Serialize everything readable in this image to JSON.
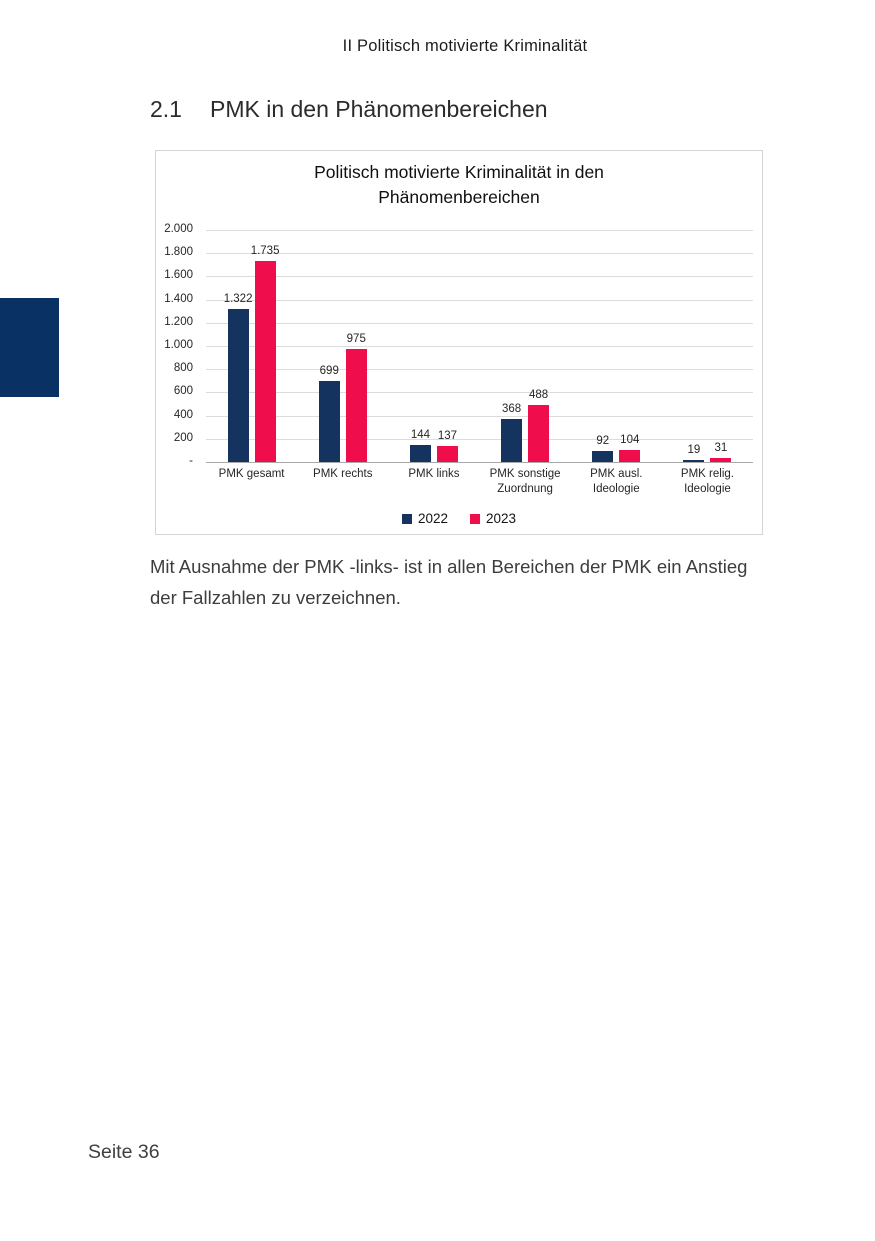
{
  "page": {
    "header": "II Politisch motivierte Kriminalität",
    "section_number": "2.1",
    "section_title": "PMK in den Phänomenbereichen",
    "body_text": "Mit Ausnahme der PMK -links- ist in allen Bereichen der PMK ein Anstieg der Fallzahlen zu verzeichnen.",
    "footer": "Seite 36"
  },
  "colors": {
    "navy": "#14335F",
    "red": "#F00D4C",
    "chapter_tab": "#0A3164",
    "gridline": "#DCDCDC"
  },
  "chart_data": {
    "type": "bar",
    "title": "Politisch motivierte Kriminalität in den Phänomenbereichen",
    "title_lines": [
      "Politisch motivierte Kriminalität in den",
      "Phänomenbereichen"
    ],
    "categories": [
      "PMK gesamt",
      "PMK rechts",
      "PMK links",
      "PMK sonstige Zuordnung",
      "PMK ausl. Ideologie",
      "PMK relig. Ideologie"
    ],
    "series": [
      {
        "name": "2022",
        "color": "#14335F",
        "values": [
          1322,
          699,
          144,
          368,
          92,
          19
        ],
        "labels": [
          "1.322",
          "699",
          "144",
          "368",
          "92",
          "19"
        ]
      },
      {
        "name": "2023",
        "color": "#F00D4C",
        "values": [
          1735,
          975,
          137,
          488,
          104,
          31
        ],
        "labels": [
          "1.735",
          "975",
          "137",
          "488",
          "104",
          "31"
        ]
      }
    ],
    "ylim": [
      0,
      2000
    ],
    "ytick_step": 200,
    "yticks": [
      "2.000",
      "1.800",
      "1.600",
      "1.400",
      "1.200",
      "1.000",
      "800",
      "600",
      "400",
      "200",
      "-"
    ],
    "grid": true,
    "legend_position": "bottom"
  }
}
